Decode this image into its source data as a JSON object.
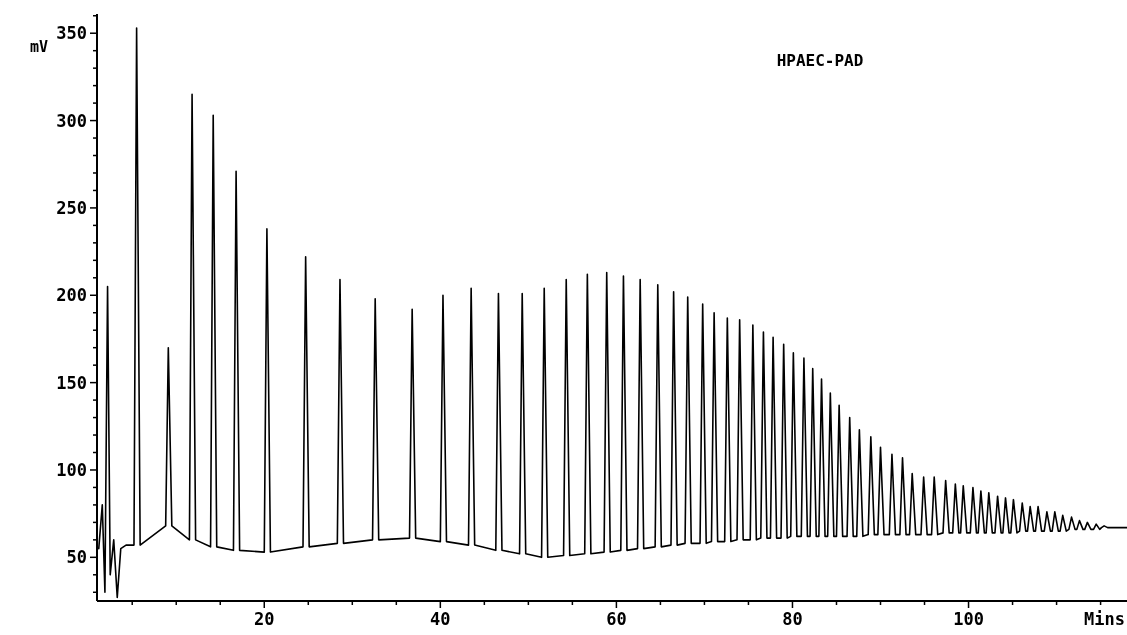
{
  "chart_data": {
    "type": "line",
    "title": "HPAEC-PAD",
    "xlabel": "Mins",
    "ylabel": "mV",
    "xlim": [
      1,
      118
    ],
    "ylim": [
      25,
      361
    ],
    "xticks": [
      {
        "value": 5,
        "label": null
      },
      {
        "value": 10,
        "label": null
      },
      {
        "value": 15,
        "label": null
      },
      20,
      {
        "value": 25,
        "label": null
      },
      {
        "value": 30,
        "label": null
      },
      {
        "value": 35,
        "label": null
      },
      40,
      {
        "value": 45,
        "label": null
      },
      {
        "value": 50,
        "label": null
      },
      {
        "value": 55,
        "label": null
      },
      60,
      {
        "value": 65,
        "label": null
      },
      {
        "value": 70,
        "label": null
      },
      {
        "value": 75,
        "label": null
      },
      80,
      {
        "value": 85,
        "label": null
      },
      {
        "value": 90,
        "label": null
      },
      {
        "value": 95,
        "label": null
      },
      100,
      {
        "value": 105,
        "label": null
      },
      {
        "value": 110,
        "label": null
      },
      {
        "value": 115,
        "label": null
      }
    ],
    "yticks": [
      {
        "value": 30,
        "label": null
      },
      {
        "value": 40,
        "label": null
      },
      50,
      {
        "value": 60,
        "label": null
      },
      {
        "value": 70,
        "label": null
      },
      {
        "value": 80,
        "label": null
      },
      {
        "value": 90,
        "label": null
      },
      100,
      {
        "value": 110,
        "label": null
      },
      {
        "value": 120,
        "label": null
      },
      {
        "value": 130,
        "label": null
      },
      {
        "value": 140,
        "label": null
      },
      150,
      {
        "value": 160,
        "label": null
      },
      {
        "value": 170,
        "label": null
      },
      {
        "value": 180,
        "label": null
      },
      {
        "value": 190,
        "label": null
      },
      200,
      {
        "value": 210,
        "label": null
      },
      {
        "value": 220,
        "label": null
      },
      {
        "value": 230,
        "label": null
      },
      {
        "value": 240,
        "label": null
      },
      250,
      {
        "value": 260,
        "label": null
      },
      {
        "value": 270,
        "label": null
      },
      {
        "value": 280,
        "label": null
      },
      {
        "value": 290,
        "label": null
      },
      300,
      {
        "value": 310,
        "label": null
      },
      {
        "value": 320,
        "label": null
      },
      {
        "value": 330,
        "label": null
      },
      {
        "value": 340,
        "label": null
      },
      350,
      {
        "value": 360,
        "label": null
      }
    ],
    "x": [
      1.2,
      1.6,
      1.9,
      2.2,
      2.5,
      2.9,
      3.3,
      3.7,
      4.3,
      5.2,
      5.5,
      5.9,
      8.8,
      9.1,
      9.5,
      11.5,
      11.8,
      12.2,
      13.9,
      14.2,
      14.6,
      16.5,
      16.8,
      17.2,
      20.0,
      20.3,
      20.7,
      24.4,
      24.7,
      25.1,
      28.3,
      28.6,
      29.0,
      32.3,
      32.6,
      33.0,
      36.5,
      36.8,
      37.2,
      40.0,
      40.3,
      40.7,
      43.2,
      43.5,
      43.9,
      46.3,
      46.6,
      47.0,
      49.0,
      49.3,
      49.7,
      51.5,
      51.8,
      52.2,
      54.0,
      54.3,
      54.7,
      56.4,
      56.7,
      57.1,
      58.6,
      58.9,
      59.3,
      60.5,
      60.8,
      61.2,
      62.4,
      62.7,
      63.1,
      64.4,
      64.7,
      65.1,
      66.2,
      66.5,
      66.9,
      67.8,
      68.1,
      68.5,
      69.5,
      69.8,
      70.2,
      70.8,
      71.1,
      71.5,
      72.3,
      72.6,
      73.0,
      73.7,
      74.0,
      74.4,
      75.2,
      75.5,
      75.9,
      76.4,
      76.7,
      77.1,
      77.5,
      77.8,
      78.2,
      78.7,
      79.0,
      79.4,
      79.8,
      80.1,
      80.5,
      81.0,
      81.3,
      81.7,
      82.0,
      82.3,
      82.7,
      83.0,
      83.3,
      83.7,
      84.0,
      84.3,
      84.7,
      85.0,
      85.3,
      85.7,
      86.2,
      86.5,
      86.9,
      87.3,
      87.6,
      88.0,
      88.6,
      88.9,
      89.3,
      89.7,
      90.0,
      90.4,
      91.0,
      91.3,
      91.7,
      92.2,
      92.5,
      92.9,
      93.3,
      93.6,
      94.0,
      94.6,
      94.9,
      95.3,
      95.8,
      96.1,
      96.5,
      97.1,
      97.4,
      97.8,
      98.2,
      98.5,
      98.9,
      99.1,
      99.4,
      99.8,
      100.2,
      100.5,
      100.9,
      101.1,
      101.4,
      101.8,
      102.0,
      102.3,
      102.7,
      103.0,
      103.3,
      103.7,
      103.9,
      104.2,
      104.6,
      104.8,
      105.1,
      105.5,
      105.8,
      106.1,
      106.5,
      106.7,
      107.0,
      107.4,
      107.6,
      107.9,
      108.3,
      108.6,
      108.9,
      109.3,
      109.5,
      109.8,
      110.2,
      110.4,
      110.7,
      111.1,
      111.4,
      111.7,
      112.1,
      112.3,
      112.6,
      113.0,
      113.2,
      113.5,
      113.9,
      114.2,
      114.5,
      114.9,
      115.1,
      115.4,
      115.8,
      118
    ],
    "series": [
      {
        "color": "#000000",
        "values": [
          55,
          80,
          30,
          205,
          40,
          60,
          27,
          55,
          57,
          57,
          353,
          57,
          68,
          170,
          68,
          60,
          315,
          60,
          56,
          303,
          56,
          54,
          271,
          54,
          53,
          238,
          53,
          56,
          222,
          56,
          58,
          209,
          58,
          60,
          198,
          60,
          61,
          192,
          61,
          59,
          200,
          59,
          57,
          204,
          57,
          54,
          201,
          54,
          52,
          201,
          52,
          50,
          204,
          50,
          51,
          209,
          51,
          52,
          212,
          52,
          53,
          213,
          53,
          54,
          211,
          54,
          55,
          209,
          55,
          56,
          206,
          56,
          57,
          202,
          57,
          58,
          199,
          58,
          58,
          195,
          58,
          59,
          190,
          59,
          59,
          187,
          59,
          60,
          186,
          60,
          60,
          183,
          60,
          61,
          179,
          61,
          61,
          176,
          61,
          61,
          172,
          61,
          62,
          167,
          62,
          62,
          164,
          62,
          62,
          158,
          62,
          62,
          152,
          62,
          62,
          144,
          62,
          62,
          137,
          62,
          62,
          130,
          62,
          62,
          123,
          62,
          63,
          119,
          63,
          63,
          113,
          63,
          63,
          109,
          63,
          63,
          107,
          63,
          63,
          98,
          63,
          63,
          96,
          63,
          63,
          96,
          63,
          64,
          94,
          64,
          64,
          92,
          64,
          64,
          91,
          64,
          64,
          90,
          64,
          64,
          88,
          64,
          64,
          87,
          64,
          64,
          85,
          64,
          64,
          84,
          64,
          64,
          83,
          64,
          65,
          81,
          65,
          65,
          79,
          65,
          65,
          79,
          65,
          65,
          76,
          65,
          65,
          76,
          65,
          65,
          74,
          65,
          66,
          73,
          66,
          66,
          71,
          66,
          66,
          70,
          66,
          66,
          69,
          66,
          67,
          68,
          67,
          67
        ]
      }
    ]
  }
}
